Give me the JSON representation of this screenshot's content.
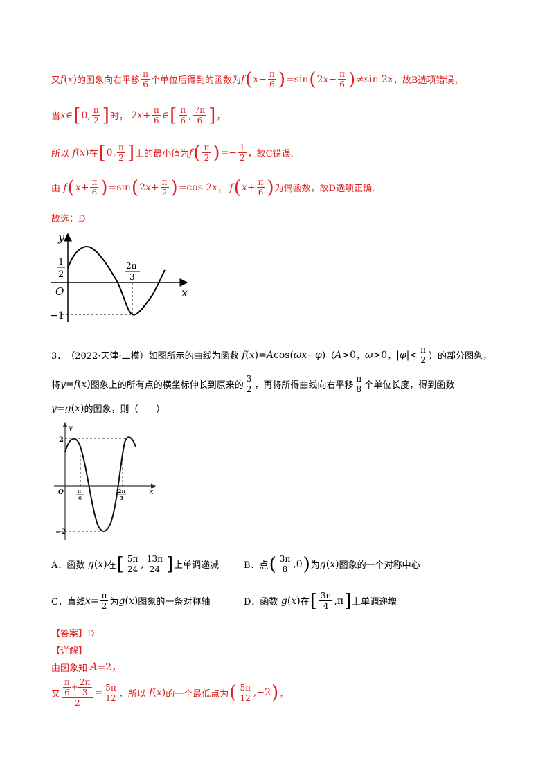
{
  "colors": {
    "answer_text": "#e0201d",
    "body_text": "#000000"
  },
  "solution_top": {
    "line1_a": "又",
    "line1_b": "的图象向右平移",
    "line1_c": "个单位后得到的函数为",
    "line1_d": "，故B选项错误；",
    "line2_a": "当",
    "line2_b": "时，",
    "line2_c": "，",
    "line3_a": "所以",
    "line3_b": "在",
    "line3_c": "上的最小值为",
    "line3_d": "，故C错误.",
    "line4_a": "由",
    "line4_b": "，",
    "line4_c": "为偶函数，故D选项正确.",
    "conclusion": "故选：D"
  },
  "figure1": {
    "y_axis": "y",
    "x_axis": "x",
    "origin": "O",
    "y_tick_num": "1",
    "y_tick_den": "2",
    "x_mark_num": "2π",
    "x_mark_den": "3",
    "min_label": "−1"
  },
  "question3": {
    "number": "3．",
    "source": "（2022·天津·二模）",
    "stem_a": "如图所示的曲线为函数",
    "stem_b": "（",
    "stem_c": "，",
    "stem_d": "，",
    "stem_e": "）的部分图象，",
    "line2_a": "将",
    "line2_b": "图象上的所有点的横坐标伸长到原来的",
    "line2_c": "，再将所得曲线向右平移",
    "line2_d": "个单位长度，得到函数",
    "line3_a": "的图象，则（　　）"
  },
  "figure2": {
    "y_axis": "y",
    "x_axis": "x",
    "origin": "O",
    "y_max": "2",
    "y_min": "−2",
    "x_mark1_num": "π",
    "x_mark1_den": "6",
    "x_mark2_num": "2π",
    "x_mark2_den": "3"
  },
  "options": {
    "a_label": "A．函数",
    "a_mid": "在",
    "a_end": "上单调递减",
    "b_label": "B．点",
    "b_mid": "为",
    "b_end": "图象的一个对称中心",
    "c_label": "C．直线",
    "c_mid": "为",
    "c_end": "图象的一条对称轴",
    "d_label": "D．函数",
    "d_mid": "在",
    "d_end": "上单调递增"
  },
  "answer": {
    "tag": "【答案】D",
    "detail_tag": "【详解】",
    "line1": "由图象知",
    "line2_a": "又",
    "line2_b": "，所以",
    "line2_c": "的一个最低点为",
    "line2_d": "，"
  }
}
